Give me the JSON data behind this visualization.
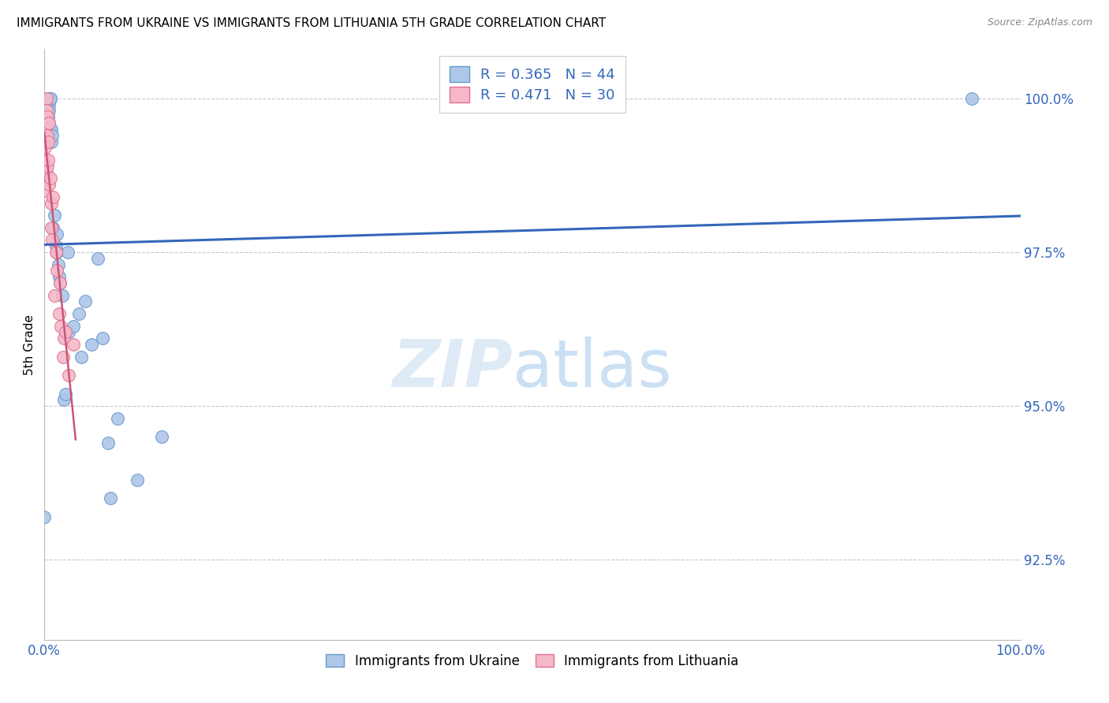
{
  "title": "IMMIGRANTS FROM UKRAINE VS IMMIGRANTS FROM LITHUANIA 5TH GRADE CORRELATION CHART",
  "source": "Source: ZipAtlas.com",
  "ylabel": "5th Grade",
  "yticks": [
    92.5,
    95.0,
    97.5,
    100.0
  ],
  "ytick_labels": [
    "92.5%",
    "95.0%",
    "97.5%",
    "100.0%"
  ],
  "xlim": [
    0.0,
    1.0
  ],
  "ylim": [
    91.2,
    100.8
  ],
  "ukraine_color": "#aec6e8",
  "ukraine_edge": "#6699cc",
  "lithuania_color": "#f5b8c8",
  "lithuania_edge": "#e07090",
  "ukraine_R": 0.365,
  "ukraine_N": 44,
  "lithuania_R": 0.471,
  "lithuania_N": 30,
  "ukraine_line_color": "#3366bb",
  "lithuania_line_color": "#cc5577",
  "ukraine_x": [
    0.0,
    0.002,
    0.002,
    0.003,
    0.003,
    0.003,
    0.004,
    0.004,
    0.004,
    0.005,
    0.005,
    0.005,
    0.006,
    0.006,
    0.006,
    0.007,
    0.007,
    0.008,
    0.009,
    0.01,
    0.012,
    0.013,
    0.013,
    0.014,
    0.015,
    0.016,
    0.018,
    0.02,
    0.022,
    0.024,
    0.025,
    0.03,
    0.035,
    0.038,
    0.042,
    0.048,
    0.055,
    0.06,
    0.065,
    0.068,
    0.075,
    0.095,
    0.12,
    0.95
  ],
  "ukraine_y": [
    93.2,
    99.8,
    99.9,
    100.0,
    100.0,
    99.8,
    100.0,
    100.0,
    99.7,
    99.9,
    99.8,
    99.6,
    100.0,
    100.0,
    99.5,
    99.5,
    99.3,
    99.4,
    97.9,
    98.1,
    97.6,
    97.5,
    97.8,
    97.3,
    97.1,
    97.0,
    96.8,
    95.1,
    95.2,
    97.5,
    96.2,
    96.3,
    96.5,
    95.8,
    96.7,
    96.0,
    97.4,
    96.1,
    94.4,
    93.5,
    94.8,
    93.8,
    94.5,
    100.0
  ],
  "lithuania_x": [
    0.0,
    0.0,
    0.001,
    0.001,
    0.002,
    0.002,
    0.002,
    0.003,
    0.003,
    0.003,
    0.004,
    0.004,
    0.005,
    0.005,
    0.006,
    0.007,
    0.007,
    0.008,
    0.009,
    0.01,
    0.012,
    0.013,
    0.015,
    0.016,
    0.017,
    0.019,
    0.02,
    0.022,
    0.025,
    0.03
  ],
  "lithuania_y": [
    99.0,
    98.5,
    99.5,
    99.2,
    100.0,
    99.8,
    98.8,
    99.7,
    99.4,
    98.9,
    99.3,
    99.0,
    98.6,
    99.6,
    98.7,
    97.9,
    98.3,
    97.7,
    98.4,
    96.8,
    97.5,
    97.2,
    96.5,
    97.0,
    96.3,
    95.8,
    96.1,
    96.2,
    95.5,
    96.0
  ],
  "legend_ukraine": "R = 0.365   N = 44",
  "legend_lithuania": "R = 0.471   N = 30",
  "bottom_legend_ukraine": "Immigrants from Ukraine",
  "bottom_legend_lithuania": "Immigrants from Lithuania"
}
